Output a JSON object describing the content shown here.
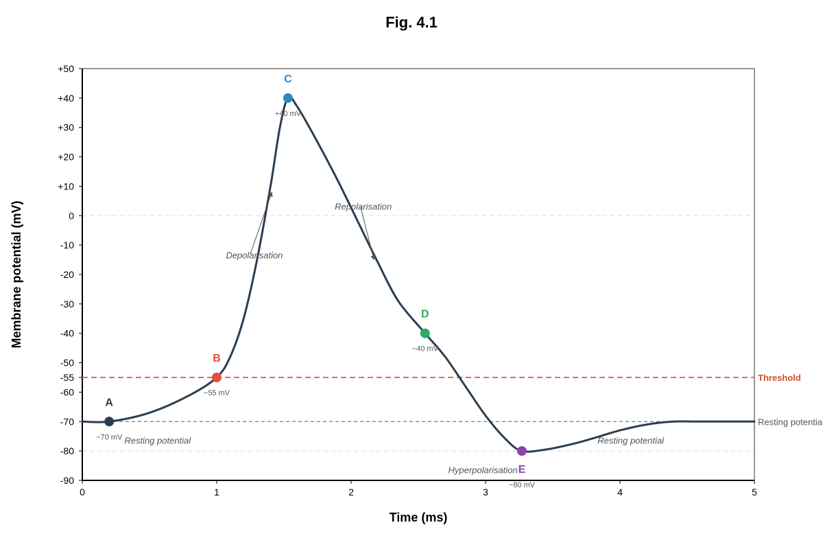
{
  "chart_data": {
    "type": "line",
    "title": "Fig. 4.1",
    "xlabel": "Time (ms)",
    "ylabel": "Membrane potential (mV)",
    "xlim": [
      0,
      5
    ],
    "ylim": [
      -90,
      50
    ],
    "x_ticks": [
      0,
      1,
      2,
      3,
      4,
      5
    ],
    "x_tick_labels": [
      "0",
      "1",
      "2",
      "3",
      "4",
      "5"
    ],
    "y_ticks": [
      50,
      40,
      30,
      20,
      10,
      0,
      -10,
      -20,
      -30,
      -40,
      -50,
      -55,
      -60,
      -70,
      -80,
      -90
    ],
    "y_tick_labels": [
      "+50",
      "+40",
      "+30",
      "+20",
      "+10",
      "0",
      "-10",
      "-20",
      "-30",
      "-40",
      "-50",
      "-55",
      "-60",
      "-70",
      "-80",
      "-90"
    ],
    "grid": false,
    "series": [
      {
        "color": "#2c3e50",
        "x": [
          0,
          0.2,
          0.5,
          0.8,
          1.0,
          1.1,
          1.2,
          1.3,
          1.4,
          1.47,
          1.53,
          1.6,
          1.75,
          1.9,
          2.05,
          2.2,
          2.35,
          2.55,
          2.7,
          2.85,
          3.0,
          3.15,
          3.27,
          3.45,
          3.7,
          4.0,
          4.2,
          4.4,
          4.6,
          5.0
        ],
        "y": [
          -70,
          -70,
          -67,
          -61,
          -55,
          -48,
          -35,
          -15,
          10,
          30,
          40,
          37,
          25,
          12,
          -2,
          -16,
          -29,
          -40,
          -48,
          -58,
          -68,
          -76,
          -80,
          -79.5,
          -77,
          -73,
          -71,
          -70,
          -70,
          -70
        ]
      }
    ],
    "points": [
      {
        "letter": "A",
        "x": 0.2,
        "y": -70,
        "value_label": "−70 mV",
        "color": "#2c3e50"
      },
      {
        "letter": "B",
        "x": 1.0,
        "y": -55,
        "value_label": "−55 mV",
        "color": "#e74c3c"
      },
      {
        "letter": "C",
        "x": 1.53,
        "y": 40,
        "value_label": "+40 mV",
        "color": "#2e86c1"
      },
      {
        "letter": "D",
        "x": 2.55,
        "y": -40,
        "value_label": "−40 mV",
        "color": "#27ae60"
      },
      {
        "letter": "E",
        "x": 3.27,
        "y": -80,
        "value_label": "−80 mV",
        "color": "#8e44ad"
      }
    ],
    "reference_lines": [
      {
        "y": -55,
        "label": "Threshold",
        "color": "#e07050",
        "style": "dashed"
      },
      {
        "y": -70,
        "label": "Resting potential",
        "color": "#777777",
        "style": "dashed"
      }
    ],
    "faint_lines": [
      0,
      -80
    ],
    "annotations": [
      {
        "text": "Depolarisation",
        "x": 1.28,
        "y": -14.5,
        "arrow_from": [
          1.25,
          -13
        ],
        "arrow_to": [
          1.41,
          8
        ]
      },
      {
        "text": "Repolarisation",
        "x": 2.09,
        "y": 2,
        "arrow_from": [
          2.07,
          3
        ],
        "arrow_to": [
          2.17,
          -15
        ]
      },
      {
        "text": "Resting potential",
        "x": 0.56,
        "y": -77.5
      },
      {
        "text": "Hyperpolarisation",
        "x": 2.98,
        "y": -87.5
      },
      {
        "text": "Resting potential",
        "x": 4.08,
        "y": -77.5
      }
    ]
  }
}
